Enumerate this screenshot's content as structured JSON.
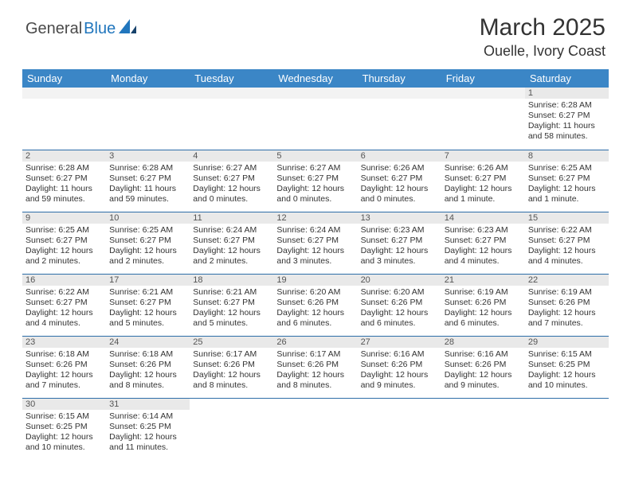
{
  "logo": {
    "text1": "General",
    "text2": "Blue",
    "color1": "#4a4a4a",
    "color2": "#2176bd"
  },
  "title": "March 2025",
  "subtitle": "Ouelle, Ivory Coast",
  "colors": {
    "header_bg": "#3b86c6",
    "row_border": "#2d6da8",
    "daynum_bg": "#e9e9e9"
  },
  "weekdays": [
    "Sunday",
    "Monday",
    "Tuesday",
    "Wednesday",
    "Thursday",
    "Friday",
    "Saturday"
  ],
  "weeks": [
    [
      null,
      null,
      null,
      null,
      null,
      null,
      {
        "n": "1",
        "sr": "Sunrise: 6:28 AM",
        "ss": "Sunset: 6:27 PM",
        "dl": "Daylight: 11 hours and 58 minutes."
      }
    ],
    [
      {
        "n": "2",
        "sr": "Sunrise: 6:28 AM",
        "ss": "Sunset: 6:27 PM",
        "dl": "Daylight: 11 hours and 59 minutes."
      },
      {
        "n": "3",
        "sr": "Sunrise: 6:28 AM",
        "ss": "Sunset: 6:27 PM",
        "dl": "Daylight: 11 hours and 59 minutes."
      },
      {
        "n": "4",
        "sr": "Sunrise: 6:27 AM",
        "ss": "Sunset: 6:27 PM",
        "dl": "Daylight: 12 hours and 0 minutes."
      },
      {
        "n": "5",
        "sr": "Sunrise: 6:27 AM",
        "ss": "Sunset: 6:27 PM",
        "dl": "Daylight: 12 hours and 0 minutes."
      },
      {
        "n": "6",
        "sr": "Sunrise: 6:26 AM",
        "ss": "Sunset: 6:27 PM",
        "dl": "Daylight: 12 hours and 0 minutes."
      },
      {
        "n": "7",
        "sr": "Sunrise: 6:26 AM",
        "ss": "Sunset: 6:27 PM",
        "dl": "Daylight: 12 hours and 1 minute."
      },
      {
        "n": "8",
        "sr": "Sunrise: 6:25 AM",
        "ss": "Sunset: 6:27 PM",
        "dl": "Daylight: 12 hours and 1 minute."
      }
    ],
    [
      {
        "n": "9",
        "sr": "Sunrise: 6:25 AM",
        "ss": "Sunset: 6:27 PM",
        "dl": "Daylight: 12 hours and 2 minutes."
      },
      {
        "n": "10",
        "sr": "Sunrise: 6:25 AM",
        "ss": "Sunset: 6:27 PM",
        "dl": "Daylight: 12 hours and 2 minutes."
      },
      {
        "n": "11",
        "sr": "Sunrise: 6:24 AM",
        "ss": "Sunset: 6:27 PM",
        "dl": "Daylight: 12 hours and 2 minutes."
      },
      {
        "n": "12",
        "sr": "Sunrise: 6:24 AM",
        "ss": "Sunset: 6:27 PM",
        "dl": "Daylight: 12 hours and 3 minutes."
      },
      {
        "n": "13",
        "sr": "Sunrise: 6:23 AM",
        "ss": "Sunset: 6:27 PM",
        "dl": "Daylight: 12 hours and 3 minutes."
      },
      {
        "n": "14",
        "sr": "Sunrise: 6:23 AM",
        "ss": "Sunset: 6:27 PM",
        "dl": "Daylight: 12 hours and 4 minutes."
      },
      {
        "n": "15",
        "sr": "Sunrise: 6:22 AM",
        "ss": "Sunset: 6:27 PM",
        "dl": "Daylight: 12 hours and 4 minutes."
      }
    ],
    [
      {
        "n": "16",
        "sr": "Sunrise: 6:22 AM",
        "ss": "Sunset: 6:27 PM",
        "dl": "Daylight: 12 hours and 4 minutes."
      },
      {
        "n": "17",
        "sr": "Sunrise: 6:21 AM",
        "ss": "Sunset: 6:27 PM",
        "dl": "Daylight: 12 hours and 5 minutes."
      },
      {
        "n": "18",
        "sr": "Sunrise: 6:21 AM",
        "ss": "Sunset: 6:27 PM",
        "dl": "Daylight: 12 hours and 5 minutes."
      },
      {
        "n": "19",
        "sr": "Sunrise: 6:20 AM",
        "ss": "Sunset: 6:26 PM",
        "dl": "Daylight: 12 hours and 6 minutes."
      },
      {
        "n": "20",
        "sr": "Sunrise: 6:20 AM",
        "ss": "Sunset: 6:26 PM",
        "dl": "Daylight: 12 hours and 6 minutes."
      },
      {
        "n": "21",
        "sr": "Sunrise: 6:19 AM",
        "ss": "Sunset: 6:26 PM",
        "dl": "Daylight: 12 hours and 6 minutes."
      },
      {
        "n": "22",
        "sr": "Sunrise: 6:19 AM",
        "ss": "Sunset: 6:26 PM",
        "dl": "Daylight: 12 hours and 7 minutes."
      }
    ],
    [
      {
        "n": "23",
        "sr": "Sunrise: 6:18 AM",
        "ss": "Sunset: 6:26 PM",
        "dl": "Daylight: 12 hours and 7 minutes."
      },
      {
        "n": "24",
        "sr": "Sunrise: 6:18 AM",
        "ss": "Sunset: 6:26 PM",
        "dl": "Daylight: 12 hours and 8 minutes."
      },
      {
        "n": "25",
        "sr": "Sunrise: 6:17 AM",
        "ss": "Sunset: 6:26 PM",
        "dl": "Daylight: 12 hours and 8 minutes."
      },
      {
        "n": "26",
        "sr": "Sunrise: 6:17 AM",
        "ss": "Sunset: 6:26 PM",
        "dl": "Daylight: 12 hours and 8 minutes."
      },
      {
        "n": "27",
        "sr": "Sunrise: 6:16 AM",
        "ss": "Sunset: 6:26 PM",
        "dl": "Daylight: 12 hours and 9 minutes."
      },
      {
        "n": "28",
        "sr": "Sunrise: 6:16 AM",
        "ss": "Sunset: 6:26 PM",
        "dl": "Daylight: 12 hours and 9 minutes."
      },
      {
        "n": "29",
        "sr": "Sunrise: 6:15 AM",
        "ss": "Sunset: 6:25 PM",
        "dl": "Daylight: 12 hours and 10 minutes."
      }
    ],
    [
      {
        "n": "30",
        "sr": "Sunrise: 6:15 AM",
        "ss": "Sunset: 6:25 PM",
        "dl": "Daylight: 12 hours and 10 minutes."
      },
      {
        "n": "31",
        "sr": "Sunrise: 6:14 AM",
        "ss": "Sunset: 6:25 PM",
        "dl": "Daylight: 12 hours and 11 minutes."
      },
      null,
      null,
      null,
      null,
      null
    ]
  ]
}
